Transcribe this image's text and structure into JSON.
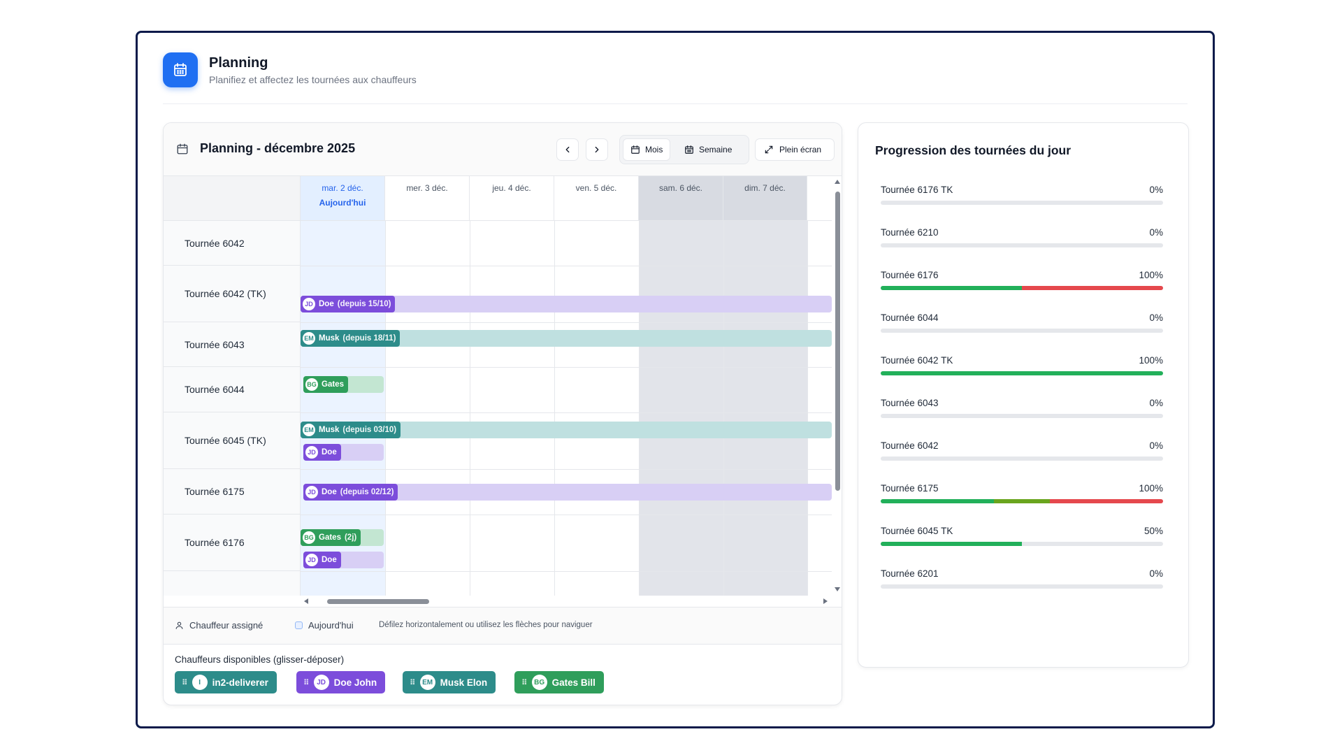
{
  "header": {
    "title": "Planning",
    "subtitle": "Planifiez et affectez les tournées aux chauffeurs",
    "icon": "calendar-icon",
    "accent": "#1f6ff2"
  },
  "calendar": {
    "title": "Planning - décembre 2025",
    "prev_icon": "chevron-left-icon",
    "next_icon": "chevron-right-icon",
    "views": {
      "month": "Mois",
      "week": "Semaine",
      "active": "Mois"
    },
    "fullscreen": "Plein écran",
    "days": [
      {
        "label": "mar. 2 déc.",
        "today_label": "Aujourd'hui",
        "today": true
      },
      {
        "label": "mer. 3 déc."
      },
      {
        "label": "jeu. 4 déc."
      },
      {
        "label": "ven. 5 déc."
      },
      {
        "label": "sam. 6 déc.",
        "weekend": true
      },
      {
        "label": "dim. 7 déc.",
        "weekend": true
      }
    ],
    "rows": [
      {
        "label": "Tournée 6042"
      },
      {
        "label": "Tournée 6042 (TK)"
      },
      {
        "label": "Tournée 6043"
      },
      {
        "label": "Tournée 6044"
      },
      {
        "label": "Tournée 6045 (TK)"
      },
      {
        "label": "Tournée 6175"
      },
      {
        "label": "Tournée 6176"
      }
    ],
    "assignments": {
      "r6042tk": {
        "initials": "JD",
        "name": "Doe",
        "since": "(depuis 15/10)"
      },
      "r6043": {
        "initials": "EM",
        "name": "Musk",
        "since": "(depuis 18/11)"
      },
      "r6044": {
        "initials": "BG",
        "name": "Gates"
      },
      "r6045tk_a": {
        "initials": "EM",
        "name": "Musk",
        "since": "(depuis 03/10)"
      },
      "r6045tk_b": {
        "initials": "JD",
        "name": "Doe"
      },
      "r6175": {
        "initials": "JD",
        "name": "Doe",
        "since": "(depuis 02/12)"
      },
      "r6176_a": {
        "initials": "BG",
        "name": "Gates",
        "since": "(2j)"
      },
      "r6176_b": {
        "initials": "JD",
        "name": "Doe"
      }
    },
    "colors": {
      "doe": "#7c4ddb",
      "musk": "#2d8c8a",
      "gates": "#2f9e5b"
    }
  },
  "legend": {
    "assigned": "Chauffeur assigné",
    "today": "Aujourd'hui",
    "hint": "Défilez horizontalement ou utilisez les flèches pour naviguer"
  },
  "drivers": {
    "title": "Chauffeurs disponibles (glisser-déposer)",
    "items": [
      {
        "initials": "I",
        "name": "in2-deliverer",
        "color": "#2d8c8a"
      },
      {
        "initials": "JD",
        "name": "Doe John",
        "color": "#7c4ddb"
      },
      {
        "initials": "EM",
        "name": "Musk Elon",
        "color": "#2d8c8a"
      },
      {
        "initials": "BG",
        "name": "Gates Bill",
        "color": "#2f9e5b"
      }
    ]
  },
  "progress": {
    "title": "Progression des tournées du jour",
    "items": [
      {
        "name": "Tournée 6176 TK",
        "pct": "0%",
        "segments": []
      },
      {
        "name": "Tournée 6210",
        "pct": "0%",
        "segments": []
      },
      {
        "name": "Tournée 6176",
        "pct": "100%",
        "segments": [
          {
            "fraction": 0.5,
            "color": "#22b05a"
          },
          {
            "fraction": 0.5,
            "color": "#e5484d"
          }
        ]
      },
      {
        "name": "Tournée 6044",
        "pct": "0%",
        "segments": []
      },
      {
        "name": "Tournée 6042 TK",
        "pct": "100%",
        "segments": [
          {
            "fraction": 1.0,
            "color": "#22b05a"
          }
        ]
      },
      {
        "name": "Tournée 6043",
        "pct": "0%",
        "segments": []
      },
      {
        "name": "Tournée 6042",
        "pct": "0%",
        "segments": []
      },
      {
        "name": "Tournée 6175",
        "pct": "100%",
        "segments": [
          {
            "fraction": 0.4,
            "color": "#22b05a"
          },
          {
            "fraction": 0.2,
            "color": "#6aa51e"
          },
          {
            "fraction": 0.4,
            "color": "#e5484d"
          }
        ]
      },
      {
        "name": "Tournée 6045 TK",
        "pct": "50%",
        "segments": [
          {
            "fraction": 0.5,
            "color": "#22b05a"
          }
        ]
      },
      {
        "name": "Tournée 6201",
        "pct": "0%",
        "segments": []
      }
    ]
  }
}
